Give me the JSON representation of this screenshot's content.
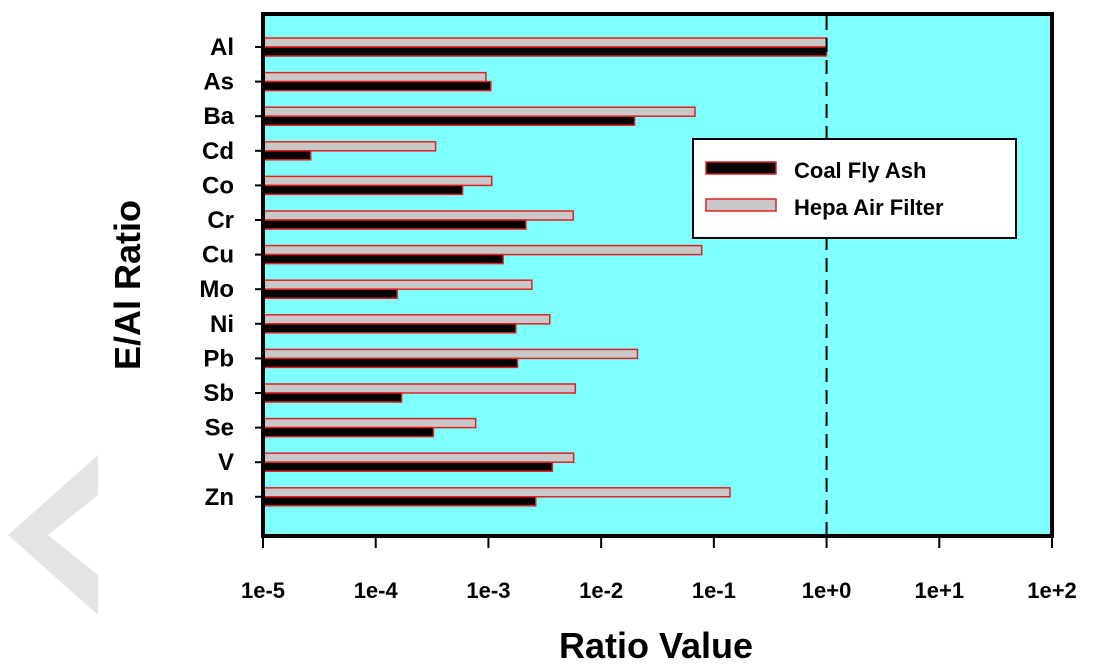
{
  "chart_data": {
    "type": "bar",
    "orientation": "horizontal",
    "xlabel": "Ratio Value",
    "ylabel": "E/Al Ratio",
    "x_scale": "log",
    "xlim": [
      1e-05,
      100
    ],
    "x_ticks": [
      "1e-5",
      "1e-4",
      "1e-3",
      "1e-2",
      "1e-1",
      "1e+0",
      "1e+1",
      "1e+2"
    ],
    "x_tick_values": [
      1e-05,
      0.0001,
      0.001,
      0.01,
      0.1,
      1,
      10,
      100
    ],
    "reference_line": {
      "x": 1,
      "style": "dashed"
    },
    "legend_position": "upper-right",
    "background_color": "#80ffff",
    "categories": [
      "Al",
      "As",
      "Ba",
      "Cd",
      "Co",
      "Cr",
      "Cu",
      "Mo",
      "Ni",
      "Pb",
      "Sb",
      "Se",
      "V",
      "Zn"
    ],
    "series": [
      {
        "name": "Coal Fly Ash",
        "color": "#000000",
        "edge_color": "#e02020",
        "values": [
          1.0,
          0.00105,
          0.0198,
          2.65e-05,
          0.00059,
          0.00215,
          0.00135,
          0.000155,
          0.00175,
          0.00181,
          0.00017,
          0.000325,
          0.00369,
          0.00263
        ]
      },
      {
        "name": "Hepa Air Filter",
        "color": "#c8c8c8",
        "edge_color": "#e02020",
        "values": [
          1.0,
          0.00095,
          0.068,
          0.00034,
          0.00107,
          0.00565,
          0.078,
          0.00243,
          0.0035,
          0.021,
          0.0059,
          0.00077,
          0.0057,
          0.139
        ]
      }
    ]
  }
}
